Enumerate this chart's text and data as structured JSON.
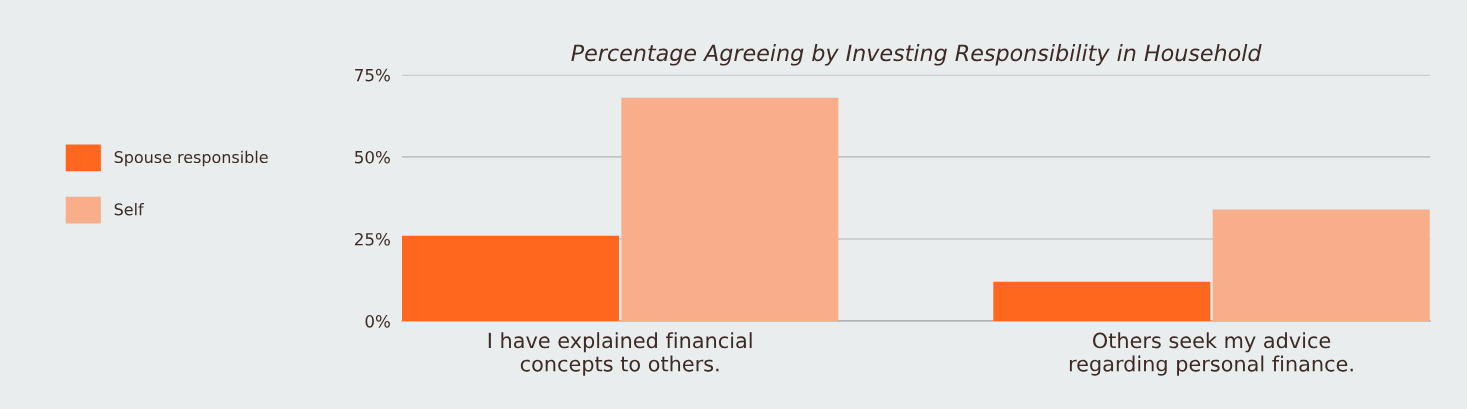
{
  "chart_data": {
    "type": "bar",
    "title": "Percentage Agreeing by Investing Responsibility in Household",
    "categories": [
      "I have explained financial\nconcepts to others.",
      "Others seek my advice\nregarding personal finance."
    ],
    "series": [
      {
        "name": "Spouse responsible",
        "color": "#ff671f",
        "values": [
          26,
          12
        ]
      },
      {
        "name": "Self",
        "color": "#f8ae8b",
        "values": [
          68,
          34
        ]
      }
    ],
    "ylim": [
      0,
      75
    ],
    "yticks": [
      {
        "value": 0,
        "label": "0%"
      },
      {
        "value": 25,
        "label": "25%"
      },
      {
        "value": 50,
        "label": "50%"
      },
      {
        "value": 75,
        "label": "75%"
      }
    ],
    "grid": "y",
    "legend": "left"
  }
}
